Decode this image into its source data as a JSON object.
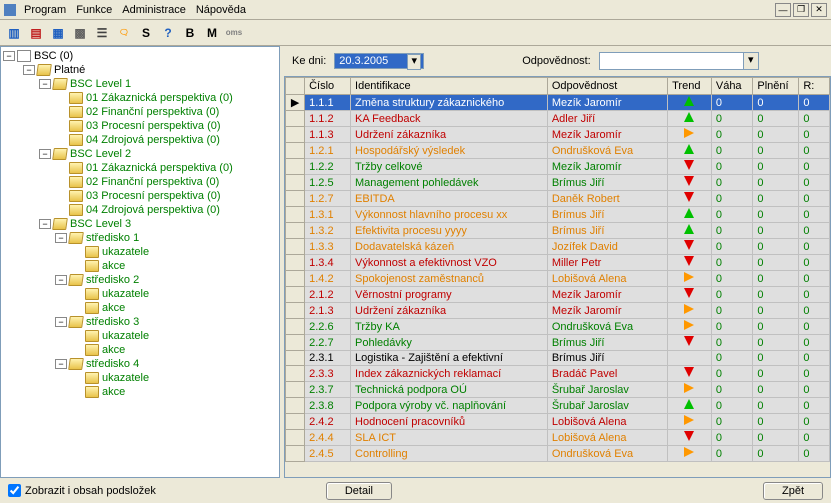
{
  "menu": {
    "items": [
      "Program",
      "Funkce",
      "Administrace",
      "Nápověda"
    ]
  },
  "toolbar": {
    "icons": [
      {
        "name": "icon1",
        "glyph": "▥",
        "color": "#2060c0"
      },
      {
        "name": "icon2",
        "glyph": "▤",
        "color": "#c02020"
      },
      {
        "name": "icon3",
        "glyph": "▦",
        "color": "#2060c0"
      },
      {
        "name": "icon4",
        "glyph": "▩",
        "color": "#606060"
      },
      {
        "name": "icon5",
        "glyph": "☰",
        "color": "#404040"
      },
      {
        "name": "speech-icon",
        "glyph": "🗨",
        "color": "#ff9800"
      },
      {
        "name": "s-icon",
        "glyph": "S",
        "color": "#000"
      },
      {
        "name": "help-icon",
        "glyph": "?",
        "color": "#2060c0"
      },
      {
        "name": "b-icon",
        "glyph": "B",
        "color": "#000"
      },
      {
        "name": "m-icon",
        "glyph": "M",
        "color": "#000"
      },
      {
        "name": "oms-icon",
        "glyph": "oms",
        "color": "#808080"
      }
    ]
  },
  "filter": {
    "ke_dni_label": "Ke dni:",
    "date_value": "20.3.2005",
    "odpovednost_label": "Odpovědnost:"
  },
  "tree": {
    "root": {
      "label": "BSC (0)",
      "colorClass": "black",
      "toggle": "−",
      "icon": "open",
      "depth": 0
    },
    "nodes": [
      {
        "label": "Platné",
        "colorClass": "black",
        "toggle": "−",
        "icon": "open",
        "depth": 1
      },
      {
        "label": "BSC Level 1",
        "colorClass": "tree-label",
        "toggle": "−",
        "icon": "open",
        "depth": 2
      },
      {
        "label": "01 Zákaznická perspektiva (0)",
        "colorClass": "tree-label",
        "toggle": "",
        "icon": "closed",
        "depth": 3
      },
      {
        "label": "02 Finanční perspektiva (0)",
        "colorClass": "tree-label",
        "toggle": "",
        "icon": "closed",
        "depth": 3
      },
      {
        "label": "03 Procesní perspektiva (0)",
        "colorClass": "tree-label",
        "toggle": "",
        "icon": "closed",
        "depth": 3
      },
      {
        "label": "04 Zdrojová perspektiva (0)",
        "colorClass": "tree-label",
        "toggle": "",
        "icon": "closed",
        "depth": 3
      },
      {
        "label": "BSC Level 2",
        "colorClass": "tree-label",
        "toggle": "−",
        "icon": "open",
        "depth": 2
      },
      {
        "label": "01 Zákaznická perspektiva (0)",
        "colorClass": "tree-label",
        "toggle": "",
        "icon": "closed",
        "depth": 3
      },
      {
        "label": "02 Finanční perspektiva (0)",
        "colorClass": "tree-label",
        "toggle": "",
        "icon": "closed",
        "depth": 3
      },
      {
        "label": "03 Procesní perspektiva (0)",
        "colorClass": "tree-label",
        "toggle": "",
        "icon": "closed",
        "depth": 3
      },
      {
        "label": "04 Zdrojová perspektiva (0)",
        "colorClass": "tree-label",
        "toggle": "",
        "icon": "closed",
        "depth": 3
      },
      {
        "label": "BSC Level 3",
        "colorClass": "tree-label",
        "toggle": "−",
        "icon": "open",
        "depth": 2
      },
      {
        "label": "středisko 1",
        "colorClass": "tree-label",
        "toggle": "−",
        "icon": "open",
        "depth": 3
      },
      {
        "label": "ukazatele",
        "colorClass": "tree-label",
        "toggle": "",
        "icon": "closed",
        "depth": 4
      },
      {
        "label": "akce",
        "colorClass": "tree-label",
        "toggle": "",
        "icon": "closed",
        "depth": 4
      },
      {
        "label": "středisko 2",
        "colorClass": "tree-label",
        "toggle": "−",
        "icon": "open",
        "depth": 3
      },
      {
        "label": "ukazatele",
        "colorClass": "tree-label",
        "toggle": "",
        "icon": "closed",
        "depth": 4
      },
      {
        "label": "akce",
        "colorClass": "tree-label",
        "toggle": "",
        "icon": "closed",
        "depth": 4
      },
      {
        "label": "středisko 3",
        "colorClass": "tree-label",
        "toggle": "−",
        "icon": "open",
        "depth": 3
      },
      {
        "label": "ukazatele",
        "colorClass": "tree-label",
        "toggle": "",
        "icon": "closed",
        "depth": 4
      },
      {
        "label": "akce",
        "colorClass": "tree-label",
        "toggle": "",
        "icon": "closed",
        "depth": 4
      },
      {
        "label": "středisko 4",
        "colorClass": "tree-label",
        "toggle": "−",
        "icon": "open",
        "depth": 3
      },
      {
        "label": "ukazatele",
        "colorClass": "tree-label",
        "toggle": "",
        "icon": "closed",
        "depth": 4
      },
      {
        "label": "akce",
        "colorClass": "tree-label",
        "toggle": "",
        "icon": "closed",
        "depth": 4
      }
    ]
  },
  "grid": {
    "columns": [
      "Číslo",
      "Identifikace",
      "Odpovědnost",
      "Trend",
      "Váha",
      "Plnění",
      "R:"
    ],
    "col_widths": [
      "42px",
      "180px",
      "110px",
      "40px",
      "38px",
      "42px",
      "28px"
    ],
    "rows": [
      {
        "selected": true,
        "cislo": "1.1.1",
        "id": "Změna struktury zákaznického",
        "odp": "Mezík Jaromír",
        "trend": "up",
        "c": "c-red"
      },
      {
        "cislo": "1.1.2",
        "id": "KA Feedback",
        "odp": "Adler Jiří",
        "trend": "up",
        "c": "c-red"
      },
      {
        "cislo": "1.1.3",
        "id": "Udržení zákazníka",
        "odp": "Mezík Jaromír",
        "trend": "right",
        "c": "c-red"
      },
      {
        "cislo": "1.2.1",
        "id": "Hospodářský výsledek",
        "odp": "Ondrušková Eva",
        "trend": "up",
        "c": "c-orange"
      },
      {
        "cislo": "1.2.2",
        "id": "Tržby celkové",
        "odp": "Mezík Jaromír",
        "trend": "down",
        "c": "c-green"
      },
      {
        "cislo": "1.2.5",
        "id": "Management pohledávek",
        "odp": "Brímus Jiří",
        "trend": "down",
        "c": "c-green"
      },
      {
        "cislo": "1.2.7",
        "id": "EBITDA",
        "odp": "Daněk Robert",
        "trend": "down",
        "c": "c-orange"
      },
      {
        "cislo": "1.3.1",
        "id": "Výkonnost hlavního procesu xx",
        "odp": "Brímus Jiří",
        "trend": "up",
        "c": "c-orange"
      },
      {
        "cislo": "1.3.2",
        "id": "Efektivita procesu yyyy",
        "odp": "Brímus Jiří",
        "trend": "up",
        "c": "c-orange"
      },
      {
        "cislo": "1.3.3",
        "id": "Dodavatelská kázeň",
        "odp": "Jozífek David",
        "trend": "down",
        "c": "c-orange"
      },
      {
        "cislo": "1.3.4",
        "id": "Výkonnost a efektivnost VZO",
        "odp": "Miller Petr",
        "trend": "down",
        "c": "c-red"
      },
      {
        "cislo": "1.4.2",
        "id": "Spokojenost zaměstnanců",
        "odp": "Lobišová Alena",
        "trend": "right",
        "c": "c-orange"
      },
      {
        "cislo": "2.1.2",
        "id": "Věrnostní programy",
        "odp": "Mezík Jaromír",
        "trend": "down",
        "c": "c-red"
      },
      {
        "cislo": "2.1.3",
        "id": "Udržení zákazníka",
        "odp": "Mezík Jaromír",
        "trend": "right",
        "c": "c-red"
      },
      {
        "cislo": "2.2.6",
        "id": "Tržby KA",
        "odp": "Ondrušková Eva",
        "trend": "right",
        "c": "c-green"
      },
      {
        "cislo": "2.2.7",
        "id": "Pohledávky",
        "odp": "Brímus Jiří",
        "trend": "down",
        "c": "c-green"
      },
      {
        "cislo": "2.3.1",
        "id": "Logistika - Zajištění a efektivní",
        "odp": "Brímus Jiří",
        "trend": "",
        "c": "c-black"
      },
      {
        "cislo": "2.3.3",
        "id": "Index zákaznických reklamací",
        "odp": "Bradáč Pavel",
        "trend": "down",
        "c": "c-red"
      },
      {
        "cislo": "2.3.7",
        "id": "Technická podpora OÚ",
        "odp": "Šrubař Jaroslav",
        "trend": "right",
        "c": "c-green"
      },
      {
        "cislo": "2.3.8",
        "id": "Podpora výroby vč. naplňování",
        "odp": "Šrubař Jaroslav",
        "trend": "up",
        "c": "c-green"
      },
      {
        "cislo": "2.4.2",
        "id": "Hodnocení pracovníků",
        "odp": "Lobišová Alena",
        "trend": "right",
        "c": "c-red"
      },
      {
        "cislo": "2.4.4",
        "id": "SLA ICT",
        "odp": "Lobišová Alena",
        "trend": "down",
        "c": "c-orange"
      },
      {
        "cislo": "2.4.5",
        "id": "Controlling",
        "odp": "Ondrušková Eva",
        "trend": "right",
        "c": "c-orange"
      }
    ]
  },
  "bottom": {
    "checkbox_label": "Zobrazit i obsah podsložek",
    "detail_btn": "Detail",
    "back_btn": "Zpět"
  }
}
